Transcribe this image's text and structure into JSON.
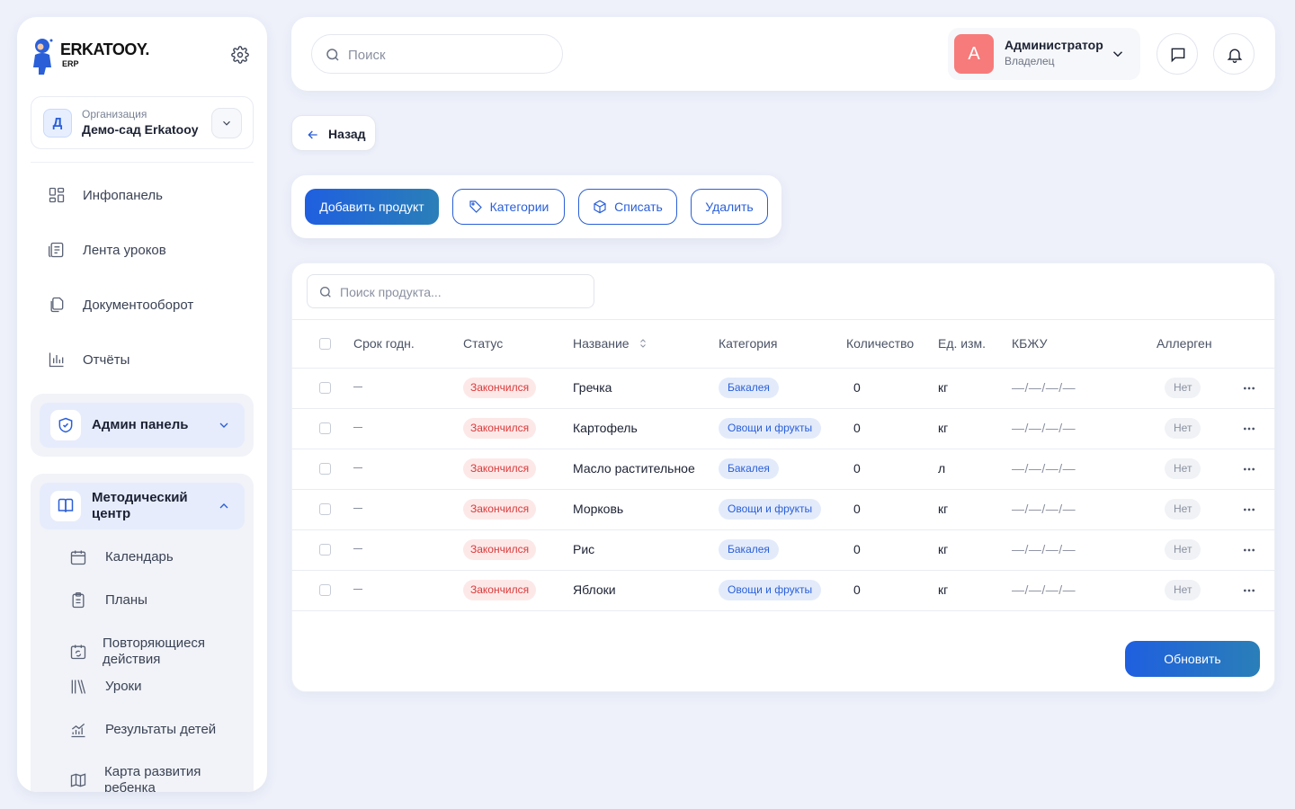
{
  "brand": {
    "name": "ERKATOOY.",
    "sub": "ERP"
  },
  "org": {
    "initial": "Д",
    "label": "Организация",
    "name": "Демо-сад Erkatooy"
  },
  "nav": [
    {
      "label": "Инфопанель",
      "icon": "dashboard-icon"
    },
    {
      "label": "Лента уроков",
      "icon": "feed-icon"
    },
    {
      "label": "Документооборот",
      "icon": "documents-icon"
    },
    {
      "label": "Отчёты",
      "icon": "chart-icon"
    }
  ],
  "admin_group": {
    "title": "Админ панель"
  },
  "method_group": {
    "title_line1": "Методический",
    "title_line2": "центр",
    "items": [
      {
        "label": "Календарь"
      },
      {
        "label": "Планы"
      },
      {
        "label_line1": "Повторяющиеся",
        "label_line2": "действия"
      },
      {
        "label": "Уроки"
      },
      {
        "label": "Результаты детей"
      },
      {
        "label_line1": "Карта развития",
        "label_line2": "ребенка"
      }
    ]
  },
  "header": {
    "search_placeholder": "Поиск",
    "user": {
      "initial": "A",
      "name": "Администратор",
      "role": "Владелец"
    }
  },
  "back_label": "Назад",
  "actions": {
    "add": "Добавить продукт",
    "categories": "Категории",
    "writeoff": "Списать",
    "delete": "Удалить"
  },
  "table": {
    "search_placeholder": "Поиск продукта...",
    "columns": {
      "expiry": "Срок годн.",
      "status": "Статус",
      "name": "Название",
      "category": "Категория",
      "qty": "Количество",
      "unit": "Ед. изм.",
      "kbju": "КБЖУ",
      "allergen": "Аллерген"
    },
    "rows": [
      {
        "expiry": "—",
        "status": "Закончился",
        "name": "Гречка",
        "category": "Бакалея",
        "qty": "0",
        "unit": "кг",
        "kbju": "—/—/—/—",
        "allergen": "Нет"
      },
      {
        "expiry": "—",
        "status": "Закончился",
        "name": "Картофель",
        "category": "Овощи и фрукты",
        "qty": "0",
        "unit": "кг",
        "kbju": "—/—/—/—",
        "allergen": "Нет"
      },
      {
        "expiry": "—",
        "status": "Закончился",
        "name": "Масло растительное",
        "category": "Бакалея",
        "qty": "0",
        "unit": "л",
        "kbju": "—/—/—/—",
        "allergen": "Нет"
      },
      {
        "expiry": "—",
        "status": "Закончился",
        "name": "Морковь",
        "category": "Овощи и фрукты",
        "qty": "0",
        "unit": "кг",
        "kbju": "—/—/—/—",
        "allergen": "Нет"
      },
      {
        "expiry": "—",
        "status": "Закончился",
        "name": "Рис",
        "category": "Бакалея",
        "qty": "0",
        "unit": "кг",
        "kbju": "—/—/—/—",
        "allergen": "Нет"
      },
      {
        "expiry": "—",
        "status": "Закончился",
        "name": "Яблоки",
        "category": "Овощи и фрукты",
        "qty": "0",
        "unit": "кг",
        "kbju": "—/—/—/—",
        "allergen": "Нет"
      }
    ],
    "refresh": "Обновить"
  }
}
